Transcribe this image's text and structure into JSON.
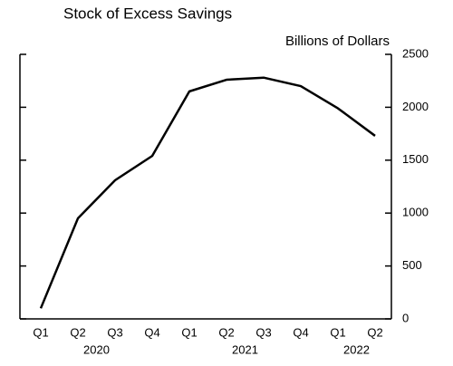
{
  "chart_data": {
    "type": "line",
    "title": "Stock of Excess Savings",
    "y_axis_label": "Billions of Dollars",
    "categories": [
      "Q1",
      "Q2",
      "Q3",
      "Q4",
      "Q1",
      "Q2",
      "Q3",
      "Q4",
      "Q1",
      "Q2"
    ],
    "groups": [
      {
        "label": "2020",
        "count": 4
      },
      {
        "label": "2021",
        "count": 4
      },
      {
        "label": "2022",
        "count": 2
      }
    ],
    "values": [
      100,
      950,
      1310,
      1540,
      2150,
      2260,
      2280,
      2200,
      1990,
      1730
    ],
    "color": "#000000",
    "ylim": [
      0,
      2500
    ],
    "yticks": [
      0,
      500,
      1000,
      1500,
      2000,
      2500
    ],
    "y_axis_side": "right",
    "grid": false
  }
}
